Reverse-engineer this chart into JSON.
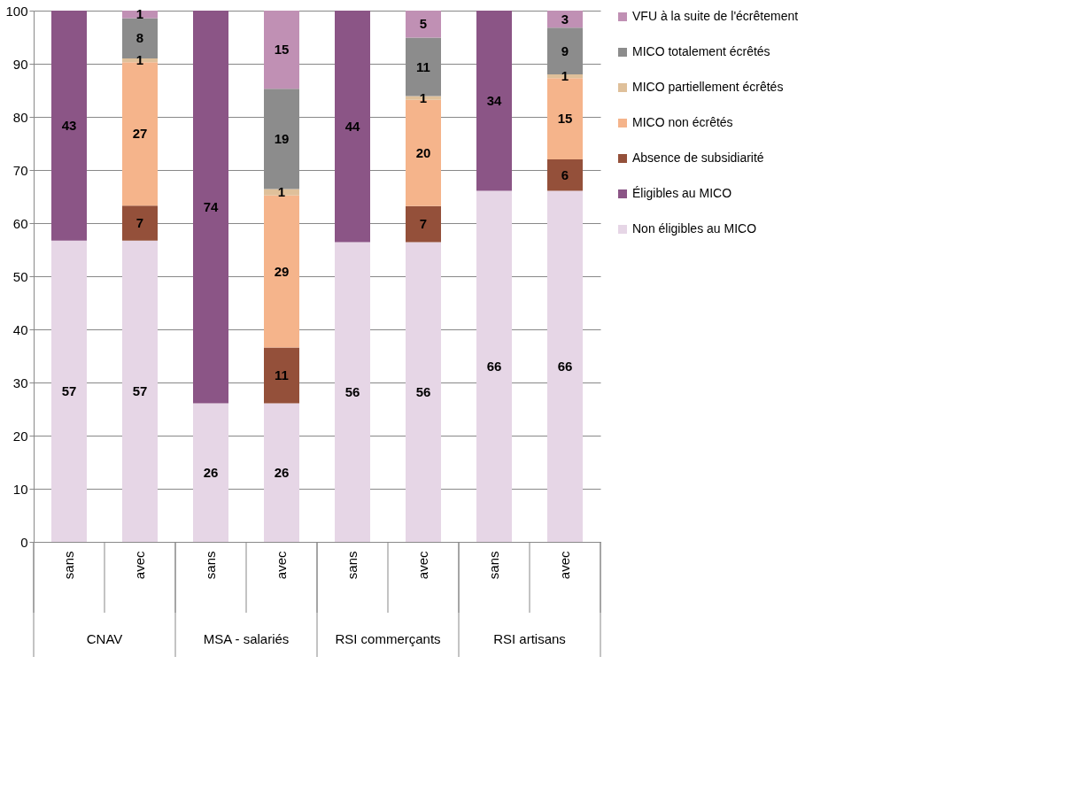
{
  "chart_data": {
    "type": "bar",
    "stacked": true,
    "categories": [
      "sans",
      "avec",
      "sans",
      "avec",
      "sans",
      "avec",
      "sans",
      "avec"
    ],
    "annotations": [
      "CNAV",
      "MSA - salariés",
      "RSI commerçants",
      "RSI artisans"
    ],
    "series": [
      {
        "name": "Non éligibles au MICO",
        "color": "#e6d6e6",
        "values": [
          56.7,
          56.7,
          26.1,
          26.1,
          56.4,
          56.4,
          66.1,
          66.1
        ],
        "value_labels": [
          "57",
          "57",
          "26",
          "26",
          "56",
          "56",
          "66",
          "66"
        ]
      },
      {
        "name": "Éligibles au MICO",
        "color": "#8b5586",
        "values": [
          43.3,
          null,
          73.9,
          null,
          43.6,
          null,
          33.9,
          null
        ],
        "value_labels": [
          "43",
          null,
          "74",
          null,
          "44",
          null,
          "34",
          null
        ]
      },
      {
        "name": "Absence de subsidiarité",
        "color": "#94503a",
        "values": [
          null,
          6.6,
          null,
          10.5,
          null,
          6.8,
          null,
          5.9
        ],
        "value_labels": [
          null,
          "7",
          null,
          "11",
          null,
          "7",
          null,
          "6"
        ]
      },
      {
        "name": "MICO non écrêtés",
        "color": "#f5b48b",
        "values": [
          null,
          27.0,
          null,
          28.6,
          null,
          20.0,
          null,
          15.3
        ],
        "value_labels": [
          null,
          "27",
          null,
          "29",
          null,
          "20",
          null,
          "15"
        ]
      },
      {
        "name": "MICO partiellement écrêtés",
        "color": "#dfc09a",
        "values": [
          null,
          0.7,
          null,
          1.2,
          null,
          0.7,
          null,
          0.7
        ],
        "value_labels": [
          null,
          "1",
          null,
          "1",
          null,
          "1",
          null,
          "1"
        ]
      },
      {
        "name": "MICO totalement écrêtés",
        "color": "#8c8c8c",
        "values": [
          null,
          7.6,
          null,
          18.9,
          null,
          11.0,
          null,
          8.8
        ],
        "value_labels": [
          null,
          "8",
          null,
          "19",
          null,
          "11",
          null,
          "9"
        ]
      },
      {
        "name": "VFU à la suite de l'écrêtement",
        "color": "#c090b4",
        "values": [
          null,
          1.4,
          null,
          14.7,
          null,
          5.1,
          null,
          3.2
        ],
        "value_labels": [
          null,
          "1",
          null,
          "15",
          null,
          "5",
          null,
          "3"
        ]
      }
    ],
    "ylim": [
      0,
      100
    ],
    "yticks": [
      0,
      10,
      20,
      30,
      40,
      50,
      60,
      70,
      80,
      90,
      100
    ],
    "grid": "y",
    "legend": "right"
  }
}
